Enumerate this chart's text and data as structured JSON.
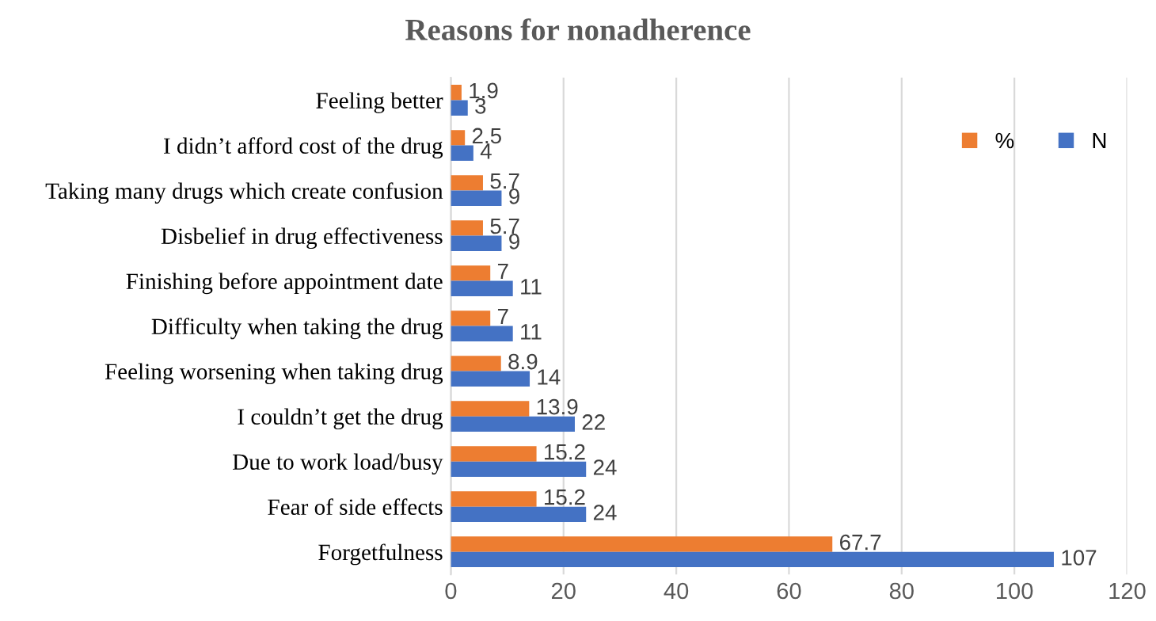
{
  "chart_data": {
    "type": "bar",
    "orientation": "horizontal",
    "title": "Reasons for nonadherence",
    "categories": [
      "Feeling better",
      "I didn’t afford cost of the drug",
      "Taking many drugs which create confusion",
      "Disbelief in drug effectiveness",
      "Finishing before appointment date",
      "Difficulty when taking the drug",
      "Feeling worsening when taking drug",
      "I couldn’t get the drug",
      "Due to work load/busy",
      "Fear of side effects",
      "Forgetfulness"
    ],
    "series": [
      {
        "name": "%",
        "color": "#ed7d31",
        "values": [
          1.9,
          2.5,
          5.7,
          5.7,
          7,
          7,
          8.9,
          13.9,
          15.2,
          15.2,
          67.7
        ]
      },
      {
        "name": "N",
        "color": "#4472c4",
        "values": [
          3,
          4,
          9,
          9,
          11,
          11,
          14,
          22,
          24,
          24,
          107
        ]
      }
    ],
    "xlim": [
      0,
      120
    ],
    "xticks": [
      0,
      20,
      40,
      60,
      80,
      100,
      120
    ],
    "grid": "x",
    "legend": "top right",
    "data_labels": true
  }
}
